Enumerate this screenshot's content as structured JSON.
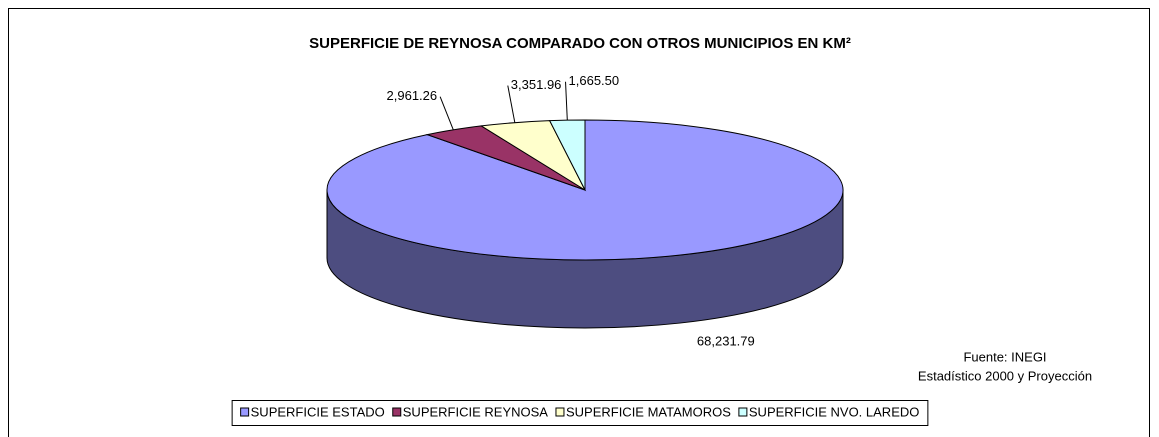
{
  "chart_data": {
    "type": "pie",
    "title": "SUPERFICIE DE REYNOSA COMPARADO CON OTROS MUNICIPIOS EN KM²",
    "categories": [
      "SUPERFICIE ESTADO",
      "SUPERFICIE REYNOSA",
      "SUPERFICIE MATAMOROS",
      "SUPERFICIE NVO. LAREDO"
    ],
    "values": [
      68231.79,
      2961.26,
      3351.96,
      1665.5
    ],
    "value_labels": [
      "68,231.79",
      "2,961.26",
      "3,351.96",
      "1,665.50"
    ],
    "colors": [
      "#9999ff",
      "#993366",
      "#ffffcc",
      "#ccffff"
    ],
    "legend": "bottom",
    "source": [
      "Fuente: INEGI",
      "Estadístico 2000 y Proyección"
    ]
  }
}
